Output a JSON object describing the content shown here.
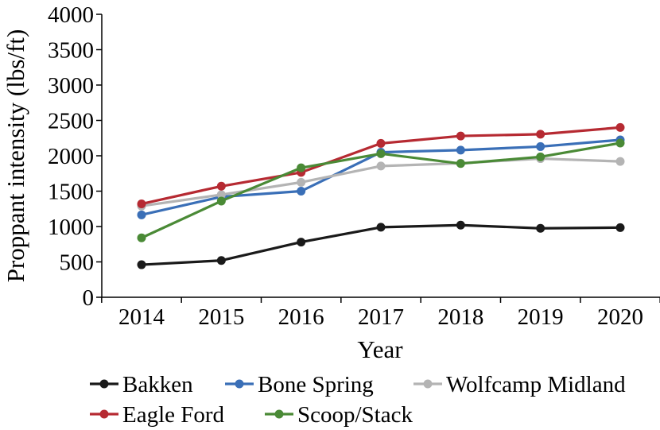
{
  "chart_data": {
    "type": "line",
    "title": "",
    "xlabel": "Year",
    "ylabel": "Proppant intensity (lbs/ft)",
    "x": [
      2014,
      2015,
      2016,
      2017,
      2018,
      2019,
      2020
    ],
    "x_tick_labels": [
      "2014",
      "2015",
      "2016",
      "2017",
      "2018",
      "2019",
      "2020"
    ],
    "ylim": [
      0,
      4000
    ],
    "y_ticks": [
      0,
      500,
      1000,
      1500,
      2000,
      2500,
      3000,
      3500,
      4000
    ],
    "y_tick_labels": [
      "0",
      "500",
      "1000",
      "1500",
      "2000",
      "2500",
      "3000",
      "3500",
      "4000"
    ],
    "grid": false,
    "legend_position": "bottom",
    "series": [
      {
        "name": "Bakken",
        "color": "#1a1a1a",
        "values": [
          460,
          520,
          780,
          990,
          1020,
          975,
          985
        ]
      },
      {
        "name": "Bone Spring",
        "color": "#3a6fb7",
        "values": [
          1165,
          1420,
          1500,
          2050,
          2080,
          2130,
          2225
        ]
      },
      {
        "name": "Wolfcamp Midland",
        "color": "#b4b4b4",
        "values": [
          1290,
          1450,
          1625,
          1855,
          1895,
          1960,
          1920
        ]
      },
      {
        "name": "Eagle Ford",
        "color": "#b62a32",
        "values": [
          1320,
          1570,
          1765,
          2175,
          2280,
          2305,
          2400
        ]
      },
      {
        "name": "Scoop/Stack",
        "color": "#4a8a36",
        "values": [
          840,
          1360,
          1830,
          2030,
          1890,
          1985,
          2180
        ]
      }
    ]
  }
}
